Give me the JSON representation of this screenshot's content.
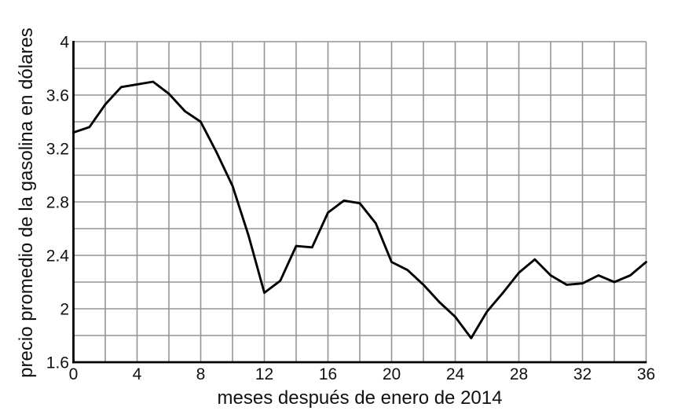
{
  "page": {
    "background_color": "#ffffff",
    "text_color": "#111111"
  },
  "chart_data": {
    "type": "line",
    "title": "",
    "xlabel": "meses después de enero de 2014",
    "ylabel": "precio promedio de la gasolina en dólares",
    "x": [
      0,
      1,
      2,
      3,
      4,
      5,
      6,
      7,
      8,
      9,
      10,
      11,
      12,
      13,
      14,
      15,
      16,
      17,
      18,
      19,
      20,
      21,
      22,
      23,
      24,
      25,
      26,
      27,
      28,
      29,
      30,
      31,
      32,
      33,
      34,
      35,
      36
    ],
    "values": [
      3.32,
      3.36,
      3.53,
      3.66,
      3.68,
      3.7,
      3.61,
      3.48,
      3.4,
      3.17,
      2.92,
      2.55,
      2.12,
      2.21,
      2.47,
      2.46,
      2.72,
      2.81,
      2.79,
      2.64,
      2.35,
      2.29,
      2.18,
      2.05,
      1.94,
      1.78,
      1.98,
      2.12,
      2.27,
      2.37,
      2.25,
      2.18,
      2.19,
      2.25,
      2.2,
      2.25,
      2.35
    ],
    "xlim": [
      0,
      36
    ],
    "ylim": [
      1.6,
      4
    ],
    "x_grid_step": 2,
    "y_grid_step": 0.2,
    "grid": true,
    "legend": false,
    "x_tick_values": [
      0,
      4,
      8,
      12,
      16,
      20,
      24,
      28,
      32,
      36
    ],
    "x_tick_labels": [
      "0",
      "4",
      "8",
      "12",
      "16",
      "20",
      "24",
      "28",
      "32",
      "36"
    ],
    "y_tick_values": [
      4,
      3.6,
      3.2,
      2.8,
      2.4,
      2,
      1.6
    ],
    "y_tick_labels": [
      "4",
      "3.6",
      "3.2",
      "2.8",
      "2.4",
      "2",
      "1.6"
    ],
    "line_color": "#000000",
    "grid_color": "#949494",
    "axis_color": "#000000"
  }
}
